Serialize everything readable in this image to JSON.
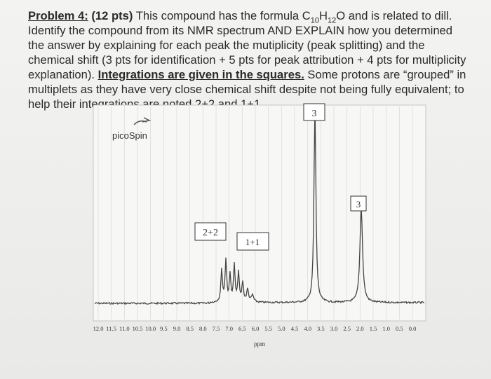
{
  "problem": {
    "label": "Problem 4:",
    "points": " (12 pts)",
    "text_1": " This compound has the formula C",
    "sub_1": "10",
    "text_2": "H",
    "sub_2": "12",
    "text_3": "O and is related to dill. Identify the compound from its NMR spectrum AND EXPLAIN how you determined the answer by explaining for each peak the mutiplicity (peak splitting) and the chemical shift (3 pts for identification + 5 pts for peak attribution + 4 pts for multiplicity explanation). ",
    "emphasis": "Integrations are given in the squares.",
    "text_4": " Some protons are “grouped” in multiplets as they have very close chemical shift despite not being fully equivalent; to help their integrations are noted 2+2 and 1+1"
  },
  "spectrum": {
    "brand": "picoSpin",
    "integrations": [
      "3",
      "3",
      "2+2",
      "1+1"
    ],
    "ticks": [
      "12.0",
      "11.5",
      "11.0",
      "10.5",
      "10.0",
      "9.5",
      "9.0",
      "8.5",
      "8.0",
      "7.5",
      "7.0",
      "6.5",
      "6.0",
      "5.5",
      "5.0",
      "4.5",
      "4.0",
      "3.5",
      "3.0",
      "2.5",
      "2.0",
      "1.5",
      "1.0",
      "0.5",
      "0.0"
    ],
    "axis_label": "ppm"
  }
}
